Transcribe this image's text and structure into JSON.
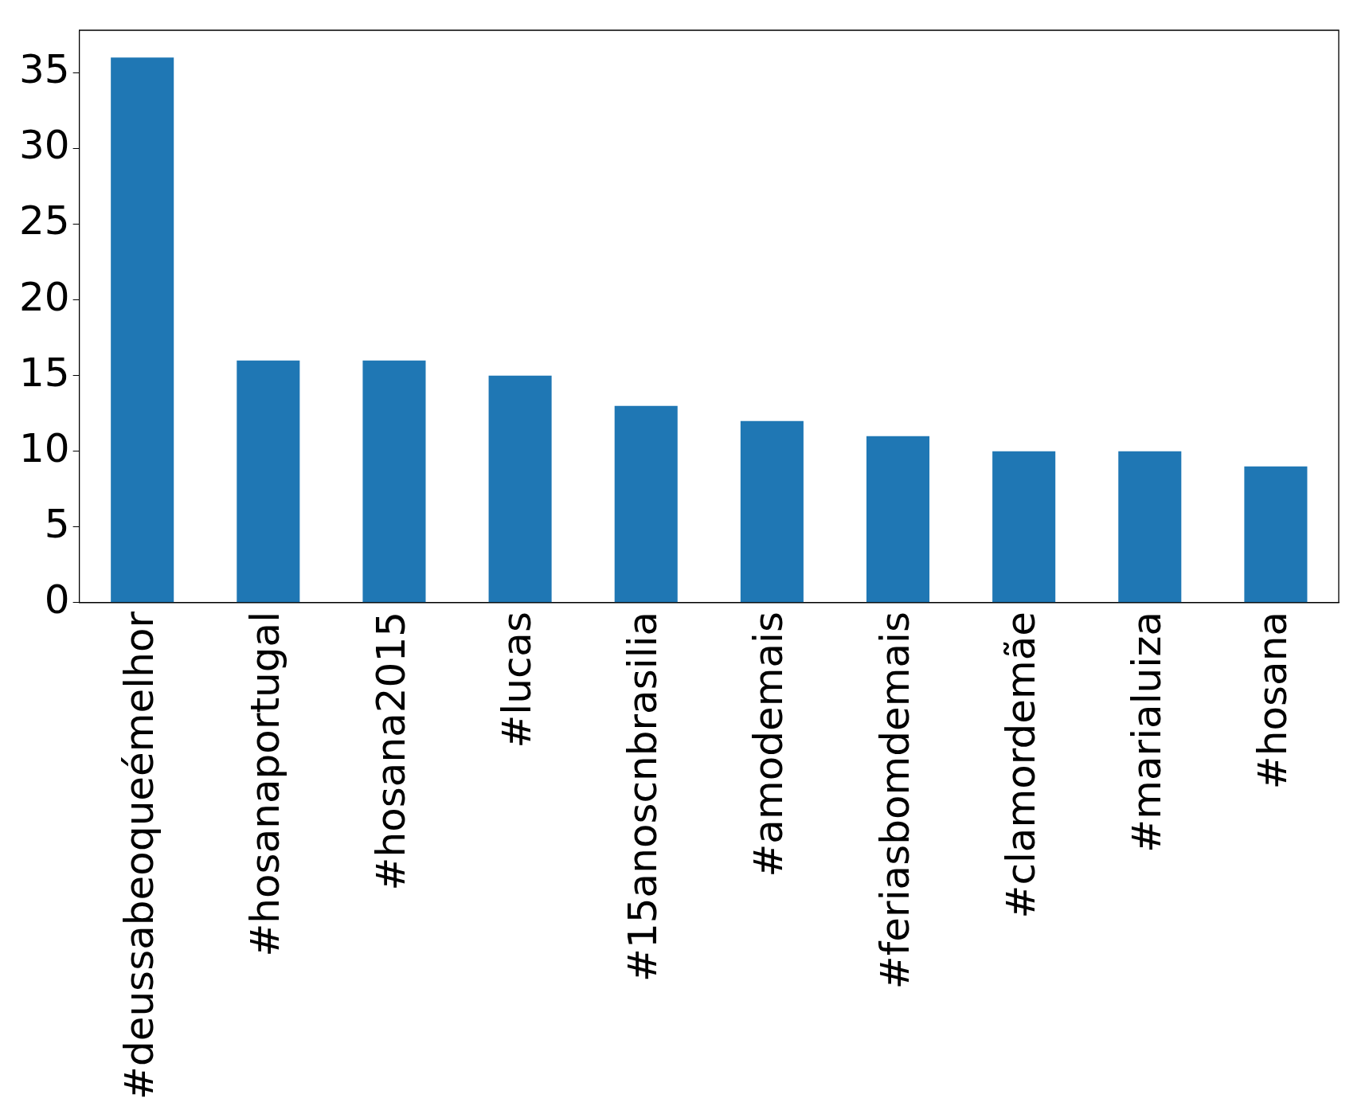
{
  "chart_data": {
    "type": "bar",
    "categories": [
      "#deussabeoqueémelhor",
      "#hosanaportugal",
      "#hosana2015",
      "#lucas",
      "#15anoscnbrasilia",
      "#amodemais",
      "#feriasbomdemais",
      "#clamordemãe",
      "#marialuiza",
      "#hosana"
    ],
    "values": [
      36,
      16,
      16,
      15,
      13,
      12,
      11,
      10,
      10,
      9
    ],
    "color": "#1f77b4",
    "ylim": [
      0,
      37.8
    ],
    "yticks": [
      0,
      5,
      10,
      15,
      20,
      25,
      30,
      35
    ],
    "grid": false,
    "legend": false
  }
}
